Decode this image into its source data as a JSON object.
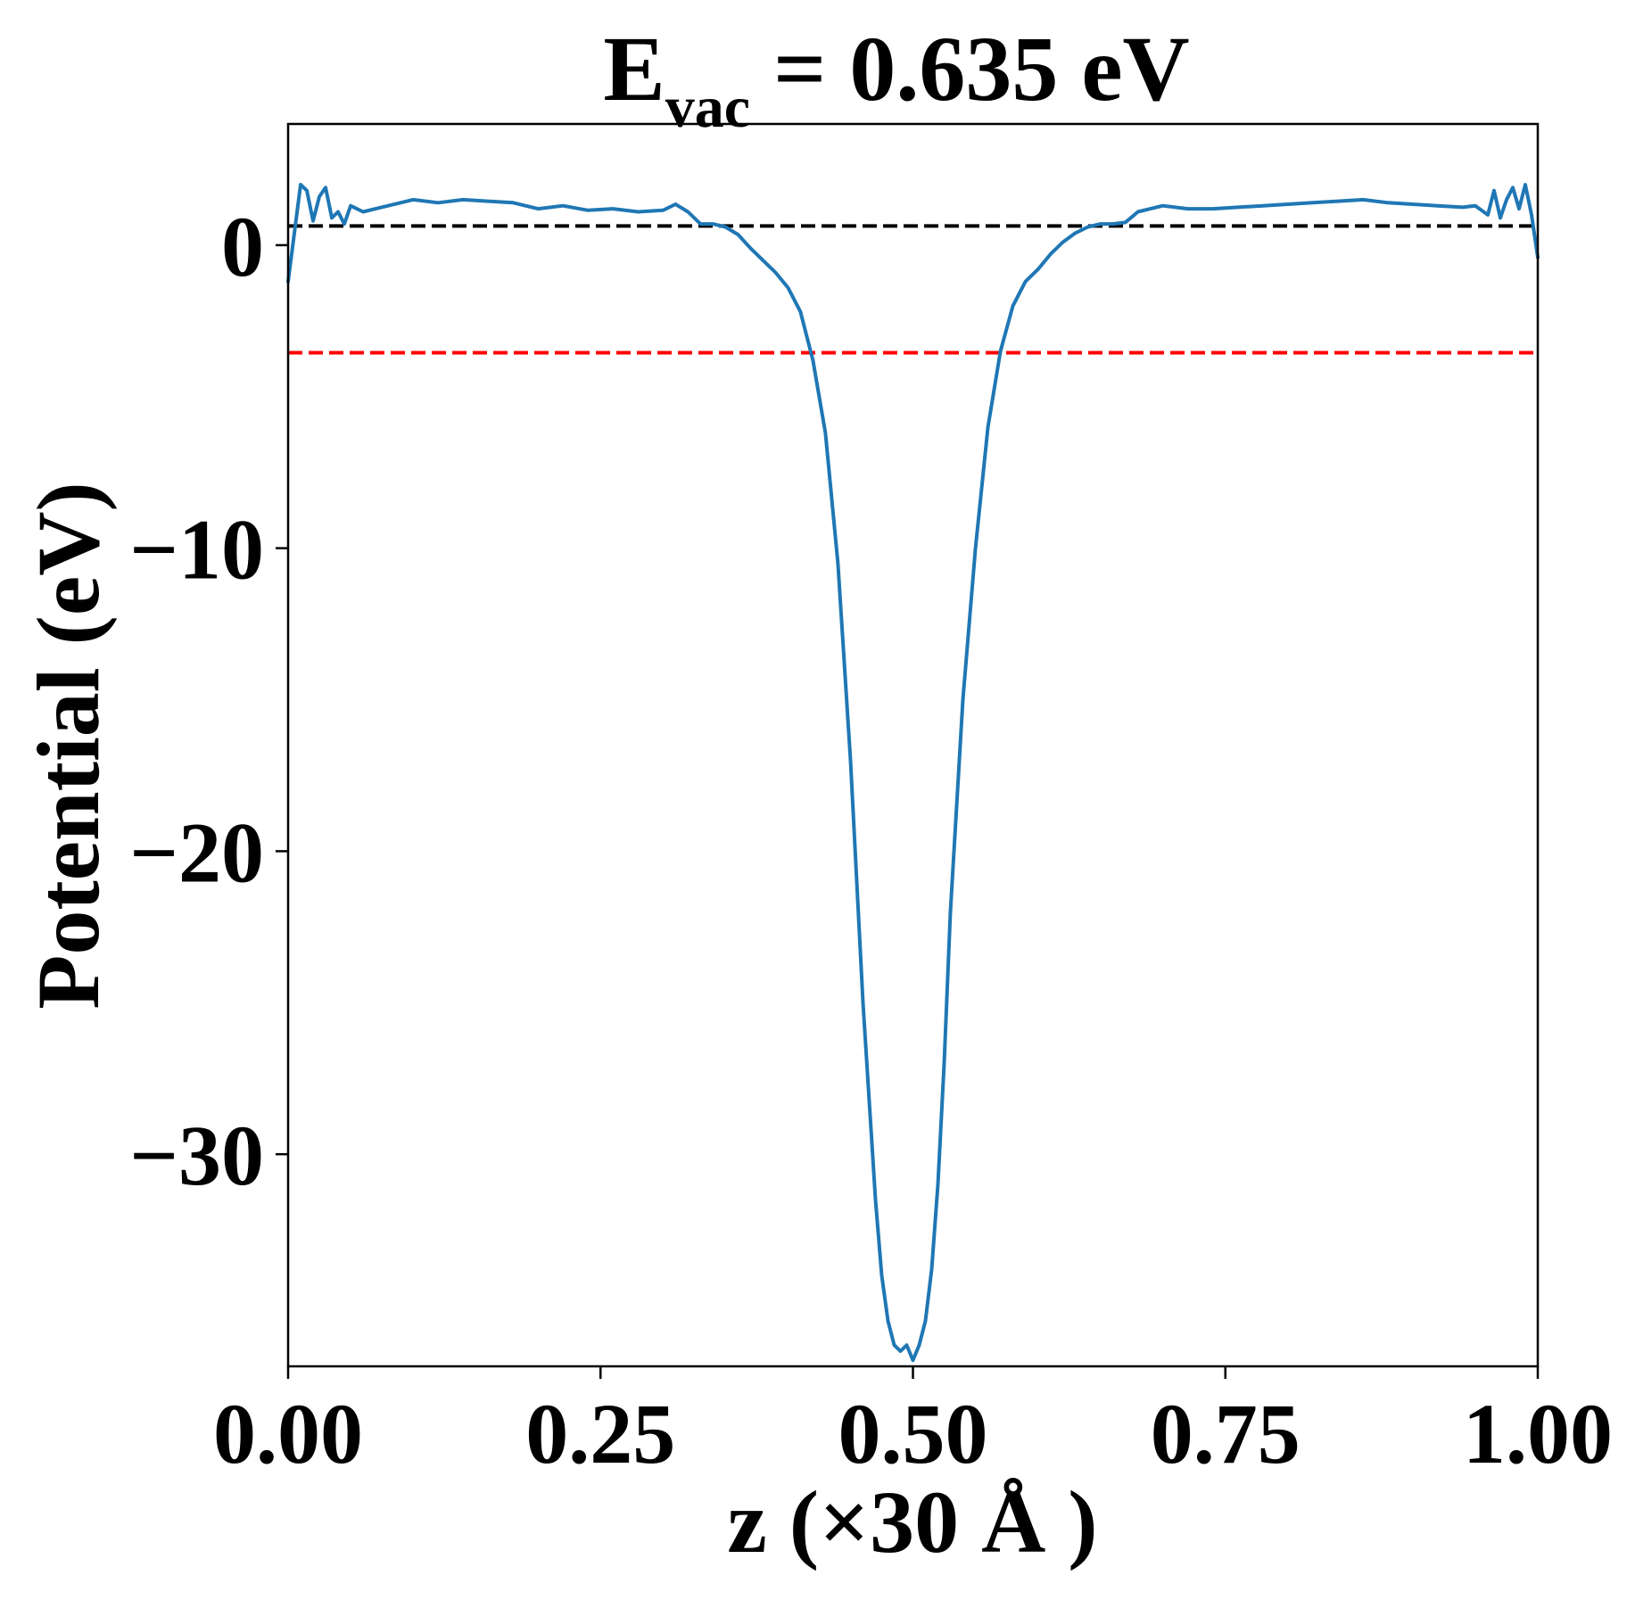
{
  "chart_data": {
    "type": "line",
    "title": {
      "main": "E",
      "subscript": "vac",
      "rest": " = 0.635 eV"
    },
    "xlabel": "z (×30 Å )",
    "ylabel": "Potential (eV)",
    "xlim": [
      0.0,
      1.0
    ],
    "ylim": [
      -37,
      4
    ],
    "x_ticks": [
      0.0,
      0.25,
      0.5,
      0.75,
      1.0
    ],
    "x_tick_labels": [
      "0.00",
      "0.25",
      "0.50",
      "0.75",
      "1.00"
    ],
    "y_ticks": [
      0,
      -10,
      -20,
      -30
    ],
    "y_tick_labels": [
      "0",
      "−10",
      "−20",
      "−30"
    ],
    "grid": false,
    "legend": "none",
    "reference_lines": [
      {
        "y": 0.635,
        "color": "#000000",
        "style": "dashed"
      },
      {
        "y": -3.55,
        "color": "#ff0000",
        "style": "dashed"
      }
    ],
    "series": [
      {
        "color": "#1f77b4",
        "x": [
          0.0,
          0.005,
          0.01,
          0.015,
          0.02,
          0.025,
          0.03,
          0.035,
          0.04,
          0.045,
          0.05,
          0.06,
          0.07,
          0.08,
          0.1,
          0.12,
          0.14,
          0.16,
          0.18,
          0.2,
          0.22,
          0.24,
          0.26,
          0.28,
          0.3,
          0.31,
          0.32,
          0.33,
          0.34,
          0.35,
          0.36,
          0.37,
          0.38,
          0.39,
          0.4,
          0.41,
          0.42,
          0.43,
          0.44,
          0.45,
          0.46,
          0.47,
          0.475,
          0.48,
          0.485,
          0.49,
          0.495,
          0.5,
          0.505,
          0.51,
          0.515,
          0.52,
          0.525,
          0.53,
          0.54,
          0.55,
          0.56,
          0.57,
          0.58,
          0.59,
          0.6,
          0.61,
          0.62,
          0.63,
          0.64,
          0.65,
          0.66,
          0.67,
          0.68,
          0.69,
          0.7,
          0.72,
          0.74,
          0.76,
          0.78,
          0.8,
          0.82,
          0.84,
          0.86,
          0.88,
          0.9,
          0.92,
          0.94,
          0.95,
          0.96,
          0.965,
          0.97,
          0.975,
          0.98,
          0.985,
          0.99,
          0.995,
          1.0
        ],
        "y": [
          -1.2,
          0.4,
          2.0,
          1.8,
          0.8,
          1.6,
          1.9,
          0.9,
          1.1,
          0.7,
          1.3,
          1.1,
          1.2,
          1.3,
          1.5,
          1.4,
          1.5,
          1.45,
          1.4,
          1.2,
          1.3,
          1.15,
          1.2,
          1.1,
          1.15,
          1.35,
          1.1,
          0.7,
          0.7,
          0.6,
          0.35,
          -0.1,
          -0.5,
          -0.9,
          -1.4,
          -2.2,
          -3.8,
          -6.2,
          -10.5,
          -17.0,
          -25.0,
          -31.5,
          -34.0,
          -35.5,
          -36.3,
          -36.5,
          -36.3,
          -36.8,
          -36.3,
          -35.5,
          -33.8,
          -31.0,
          -27.0,
          -22.0,
          -15.0,
          -10.0,
          -6.0,
          -3.5,
          -2.0,
          -1.2,
          -0.8,
          -0.3,
          0.1,
          0.4,
          0.6,
          0.7,
          0.7,
          0.75,
          1.1,
          1.2,
          1.3,
          1.2,
          1.2,
          1.25,
          1.3,
          1.35,
          1.4,
          1.45,
          1.5,
          1.4,
          1.35,
          1.3,
          1.25,
          1.3,
          1.0,
          1.8,
          0.9,
          1.5,
          1.9,
          1.2,
          2.0,
          1.0,
          -0.4
        ]
      }
    ]
  }
}
